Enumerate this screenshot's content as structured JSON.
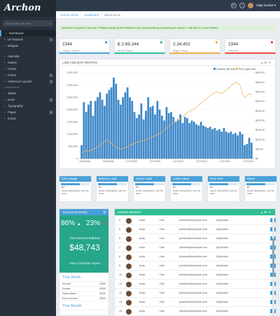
{
  "app": {
    "logo": "Archon"
  },
  "sidebar": {
    "search_placeholder": "Search this site here",
    "items_top": [
      {
        "label": "Dashboard",
        "icon": "home-icon",
        "active": true
      },
      {
        "label": "UI Features",
        "icon": "layers-icon",
        "badge": "1"
      },
      {
        "label": "Widgets",
        "icon": "grid-icon"
      }
    ],
    "items_mid": [
      {
        "label": "Calendar",
        "icon": "calendar-icon"
      },
      {
        "label": "Gallery",
        "icon": "image-icon"
      },
      {
        "label": "Charts",
        "icon": "chart-icon"
      },
      {
        "label": "Forms",
        "icon": "edit-icon",
        "badge": "2"
      },
      {
        "label": "Advanced Layouts",
        "icon": "layout-icon",
        "badge": "3"
      }
    ],
    "section2": "Components",
    "items_bottom": [
      {
        "label": "Tables",
        "icon": "table-icon"
      },
      {
        "label": "Icons",
        "icon": "star-icon",
        "badge": "4"
      },
      {
        "label": "Typography",
        "icon": "text-icon"
      },
      {
        "label": "Pages",
        "icon": "file-icon",
        "badge": "5"
      },
      {
        "label": "Extras",
        "icon": "plus-icon"
      }
    ]
  },
  "topbar": {
    "user_name": "Vijay Kumar"
  },
  "breadcrumb": [
    "Archon Admin",
    "Dashboard",
    "Blank Dump"
  ],
  "alert": "Welcome! Hi guest to see you. Please contact all the features if you feel something is missing you name it. I will add it to next release.",
  "stats": [
    {
      "value": "2344",
      "label": "Unique Views",
      "color": "#49a0d8"
    },
    {
      "value": "$ 2,69,344",
      "label": "Month Sales",
      "color": "#2fbf95"
    },
    {
      "value": "2,34,402",
      "label": "Page Views",
      "color": "#f0ad4e"
    },
    {
      "value": "2344",
      "label": "Returns",
      "color": "#e74c3c"
    }
  ],
  "graph": {
    "title": "LINE AND BAR GRAPHS",
    "chart_data": {
      "type": "bar",
      "legend": [
        "Quantity (left axis)",
        "Price (right axis)"
      ],
      "x_ticks": [
        "1/25/2008",
        "7/25/2008",
        "1/27/2009",
        "7/27/2009",
        "1/27/2010",
        "7/27/2010",
        "1/27/2011",
        "7/27/2011"
      ],
      "y_left_ticks": [
        "0",
        "500,000",
        "1,000,000",
        "1,500,000",
        "2,000,000",
        "2,500,000",
        "3,000,000",
        "3,500,000"
      ],
      "y_right_ticks": [
        "$0",
        "$50.00",
        "$100.00",
        "$150.00",
        "$200.00",
        "$250.00",
        "$300.00",
        "$350.00",
        "$400.00",
        "$450.00"
      ],
      "ylim_left": [
        0,
        3500000
      ],
      "ylim_right": [
        0,
        450
      ],
      "bar_values": [
        550000,
        2300000,
        1900000,
        2200000,
        2350000,
        1750000,
        2350000,
        2500000,
        2700000,
        2400000,
        2150000,
        2650000,
        2800000,
        2900000,
        3300000,
        3050000,
        2400000,
        2200000,
        2500000,
        2700000,
        2900000,
        2500000,
        2350000,
        1900000,
        1650000,
        1800000,
        2250000,
        1600000,
        1950000,
        2500000,
        2100000,
        2150000,
        1800000,
        2350000,
        2000000,
        1750000,
        1550000,
        2100000,
        1850000,
        1900000,
        1700000,
        1500000,
        1600000,
        1800000,
        1450000,
        1700000,
        1650000,
        1450000,
        1550000,
        1500000,
        1400000,
        1350000,
        1500000,
        1350000,
        1300000,
        1250000,
        1300000,
        1200000,
        1250000,
        1150000,
        1200000,
        1100000,
        1250000,
        1100000,
        1050000,
        1100000,
        1000000,
        1050000,
        950000,
        1100000,
        1000000,
        550000,
        600000,
        850000,
        650000
      ],
      "line_values": [
        30,
        38,
        42,
        40,
        45,
        48,
        55,
        60,
        70,
        80,
        90,
        96,
        90,
        80,
        70,
        60,
        55,
        50,
        55,
        58,
        65,
        70,
        75,
        80,
        85,
        90,
        92,
        95,
        100,
        105,
        110,
        115,
        120,
        125,
        130,
        140,
        150,
        160,
        170,
        180,
        190,
        195,
        200,
        210,
        220,
        230,
        240,
        250,
        255,
        260,
        270,
        280,
        290,
        300,
        310,
        320,
        330,
        340,
        345,
        350,
        345,
        340,
        350,
        360,
        370,
        380,
        390,
        400,
        395,
        385,
        340,
        320,
        330,
        340,
        335
      ]
    }
  },
  "metrics": [
    {
      "title": "CPU Usage",
      "value": "67",
      "fill": 0.67,
      "desc": "some description can be here"
    },
    {
      "title": "Memory Load",
      "value": "67",
      "fill": 0.67,
      "desc": "some description can be here"
    },
    {
      "title": "Server Load",
      "value": "67",
      "fill": 0.67,
      "desc": "some description can be here"
    },
    {
      "title": "Active Users",
      "value": "67",
      "fill": 0.67,
      "desc": "some description can be here"
    },
    {
      "title": "Real Time",
      "value": "67",
      "fill": 0.67,
      "desc": "some description can be here"
    },
    {
      "title": "Direct",
      "value": "67",
      "fill": 0.67,
      "desc": "some description can be here"
    }
  ],
  "account": {
    "title": "Account Summary",
    "pct_up": "86%",
    "pct_down": "23%",
    "balance_label": "Your account balance",
    "balance": "$48,743",
    "report_link": "View Complete report",
    "week_title": "This Week",
    "rows": [
      {
        "k": "Income",
        "v": "$300"
      },
      {
        "k": "Stocks",
        "v": "$300"
      },
      {
        "k": "Expenditure",
        "v": "$300"
      },
      {
        "k": "Extra Income",
        "v": "$300"
      }
    ],
    "month_title": "This Month"
  },
  "users": {
    "title": "USERS WIDGET",
    "rows": [
      {
        "n": "4",
        "first": "Jump",
        "last": "Doe",
        "email": "johndoe@example.com",
        "handle": "@johndoe"
      },
      {
        "n": "5",
        "first": "Jump",
        "last": "Doe",
        "email": "johndoe@example.com",
        "handle": "@johndoe"
      },
      {
        "n": "6",
        "first": "Jump",
        "last": "Doe",
        "email": "johndoe@example.com",
        "handle": "@johndoe"
      },
      {
        "n": "7",
        "first": "Jump",
        "last": "Doe",
        "email": "johndoe@example.com",
        "handle": "@johndoe"
      },
      {
        "n": "8",
        "first": "Jump",
        "last": "Doe",
        "email": "johndoe@example.com",
        "handle": "@johndoe"
      },
      {
        "n": "9",
        "first": "Jump",
        "last": "Doe",
        "email": "johndoe@example.com",
        "handle": "@johndoe"
      },
      {
        "n": "10",
        "first": "Jump",
        "last": "Doe",
        "email": "johndoe@example.com",
        "handle": "@johndoe"
      },
      {
        "n": "11",
        "first": "Jump",
        "last": "Doe",
        "email": "johndoe@example.com",
        "handle": "@johndoe"
      },
      {
        "n": "12",
        "first": "Jump",
        "last": "Doe",
        "email": "johndoe@example.com",
        "handle": "@johndoe"
      },
      {
        "n": "13",
        "first": "Jump",
        "last": "Doe",
        "email": "johndoe@example.com",
        "handle": "@johndoe"
      },
      {
        "n": "14",
        "first": "Jump",
        "last": "Doe",
        "email": "johndoe@example.com",
        "handle": "@johndoe"
      }
    ]
  }
}
